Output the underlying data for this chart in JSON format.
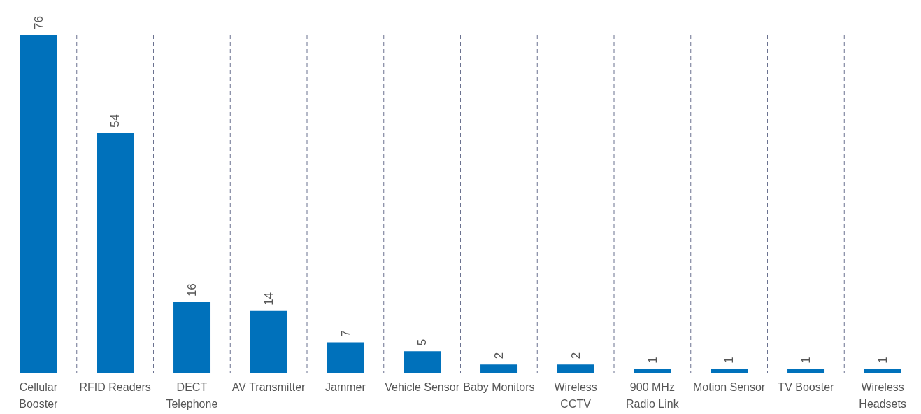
{
  "chart_data": {
    "type": "bar",
    "categories": [
      "Cellular Booster",
      "RFID Readers",
      "DECT Telephone",
      "AV Transmitter",
      "Jammer",
      "Vehicle Sensor",
      "Baby Monitors",
      "Wireless CCTV",
      "900 MHz Radio Link",
      "Motion Sensor",
      "TV Booster",
      "Wireless Headsets"
    ],
    "values": [
      76,
      54,
      16,
      14,
      7,
      5,
      2,
      2,
      1,
      1,
      1,
      1
    ],
    "color": "#0071bb",
    "data_labels": true,
    "grid": "x"
  }
}
